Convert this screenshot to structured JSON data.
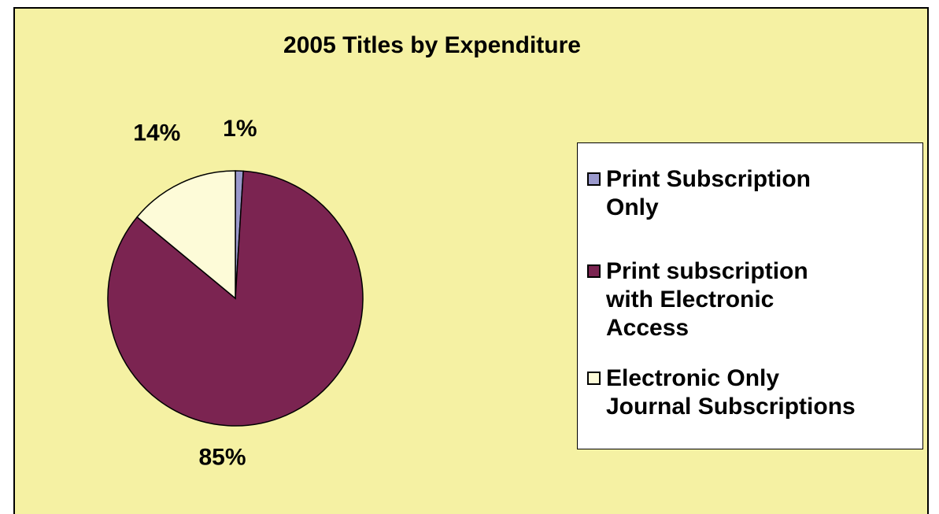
{
  "chart_data": {
    "type": "pie",
    "title": "2005 Titles by Expenditure",
    "categories": [
      "Print Subscription Only",
      "Print subscription with Electronic Access",
      "Electronic Only Journal Subscriptions"
    ],
    "values": [
      1,
      85,
      14
    ],
    "value_labels": [
      "1%",
      "85%",
      "14%"
    ],
    "colors": [
      "#9a99cc",
      "#7b2451",
      "#fdfbd8"
    ],
    "legend_placement": "right",
    "start_angle_deg": 0,
    "direction": "clockwise"
  },
  "legend": {
    "items": [
      {
        "label_line1": "Print Subscription",
        "label_line2": "Only",
        "label_line3": ""
      },
      {
        "label_line1": "Print subscription",
        "label_line2": "with Electronic",
        "label_line3": "Access"
      },
      {
        "label_line1": "Electronic Only",
        "label_line2": "Journal Subscriptions",
        "label_line3": ""
      }
    ]
  },
  "colors": {
    "background": "#f5f1a3",
    "legend_background": "#ffffff"
  }
}
